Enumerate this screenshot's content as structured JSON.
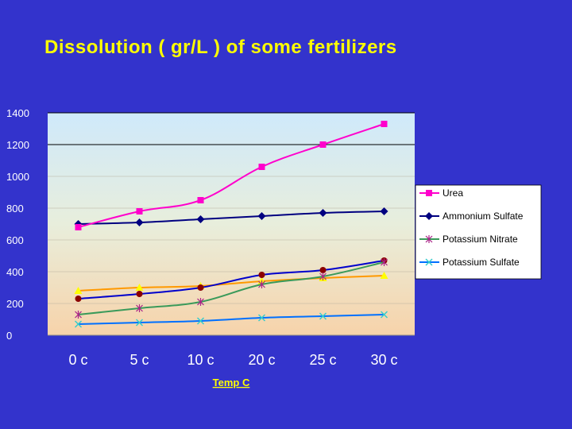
{
  "slide": {
    "title": "Dissolution ( gr/L ) of some fertilizers"
  },
  "colors": {
    "background": "#3333cc",
    "title": "#ffff00",
    "tick_text": "#ffffff",
    "xlabel": "#ffff00"
  },
  "chart_data": {
    "type": "line",
    "title": "Dissolution ( gr/L ) of some fertilizers",
    "xlabel": "Temp C",
    "ylabel": "",
    "categories": [
      "0 c",
      "5 c",
      "10 c",
      "20 c",
      "25 c",
      "30 c"
    ],
    "ylim": [
      0,
      1400
    ],
    "yticks": [
      0,
      200,
      400,
      600,
      800,
      1000,
      1200,
      1400
    ],
    "legend_position": "right",
    "grid": "horizontal",
    "series": [
      {
        "name": "Urea",
        "values": [
          680,
          780,
          850,
          1060,
          1200,
          1330
        ],
        "color": "#ff00cc",
        "marker": "square"
      },
      {
        "name": "Ammonium Sulfate",
        "values": [
          700,
          710,
          730,
          750,
          770,
          780
        ],
        "color": "#000080",
        "marker": "diamond"
      },
      {
        "name": "Potassium Nitrate",
        "values": [
          130,
          170,
          210,
          320,
          370,
          460
        ],
        "color": "#3a9a5a",
        "marker": "star"
      },
      {
        "name": "Potassium Sulfate",
        "values": [
          70,
          80,
          90,
          110,
          120,
          130
        ],
        "color": "#0070ff",
        "marker": "x"
      },
      {
        "name": "",
        "values": [
          230,
          260,
          300,
          380,
          410,
          470
        ],
        "color": "#0000cc",
        "marker": "circle"
      },
      {
        "name": "",
        "values": [
          280,
          300,
          310,
          340,
          360,
          375
        ],
        "color": "#ff9900",
        "marker": "triangle"
      }
    ]
  }
}
